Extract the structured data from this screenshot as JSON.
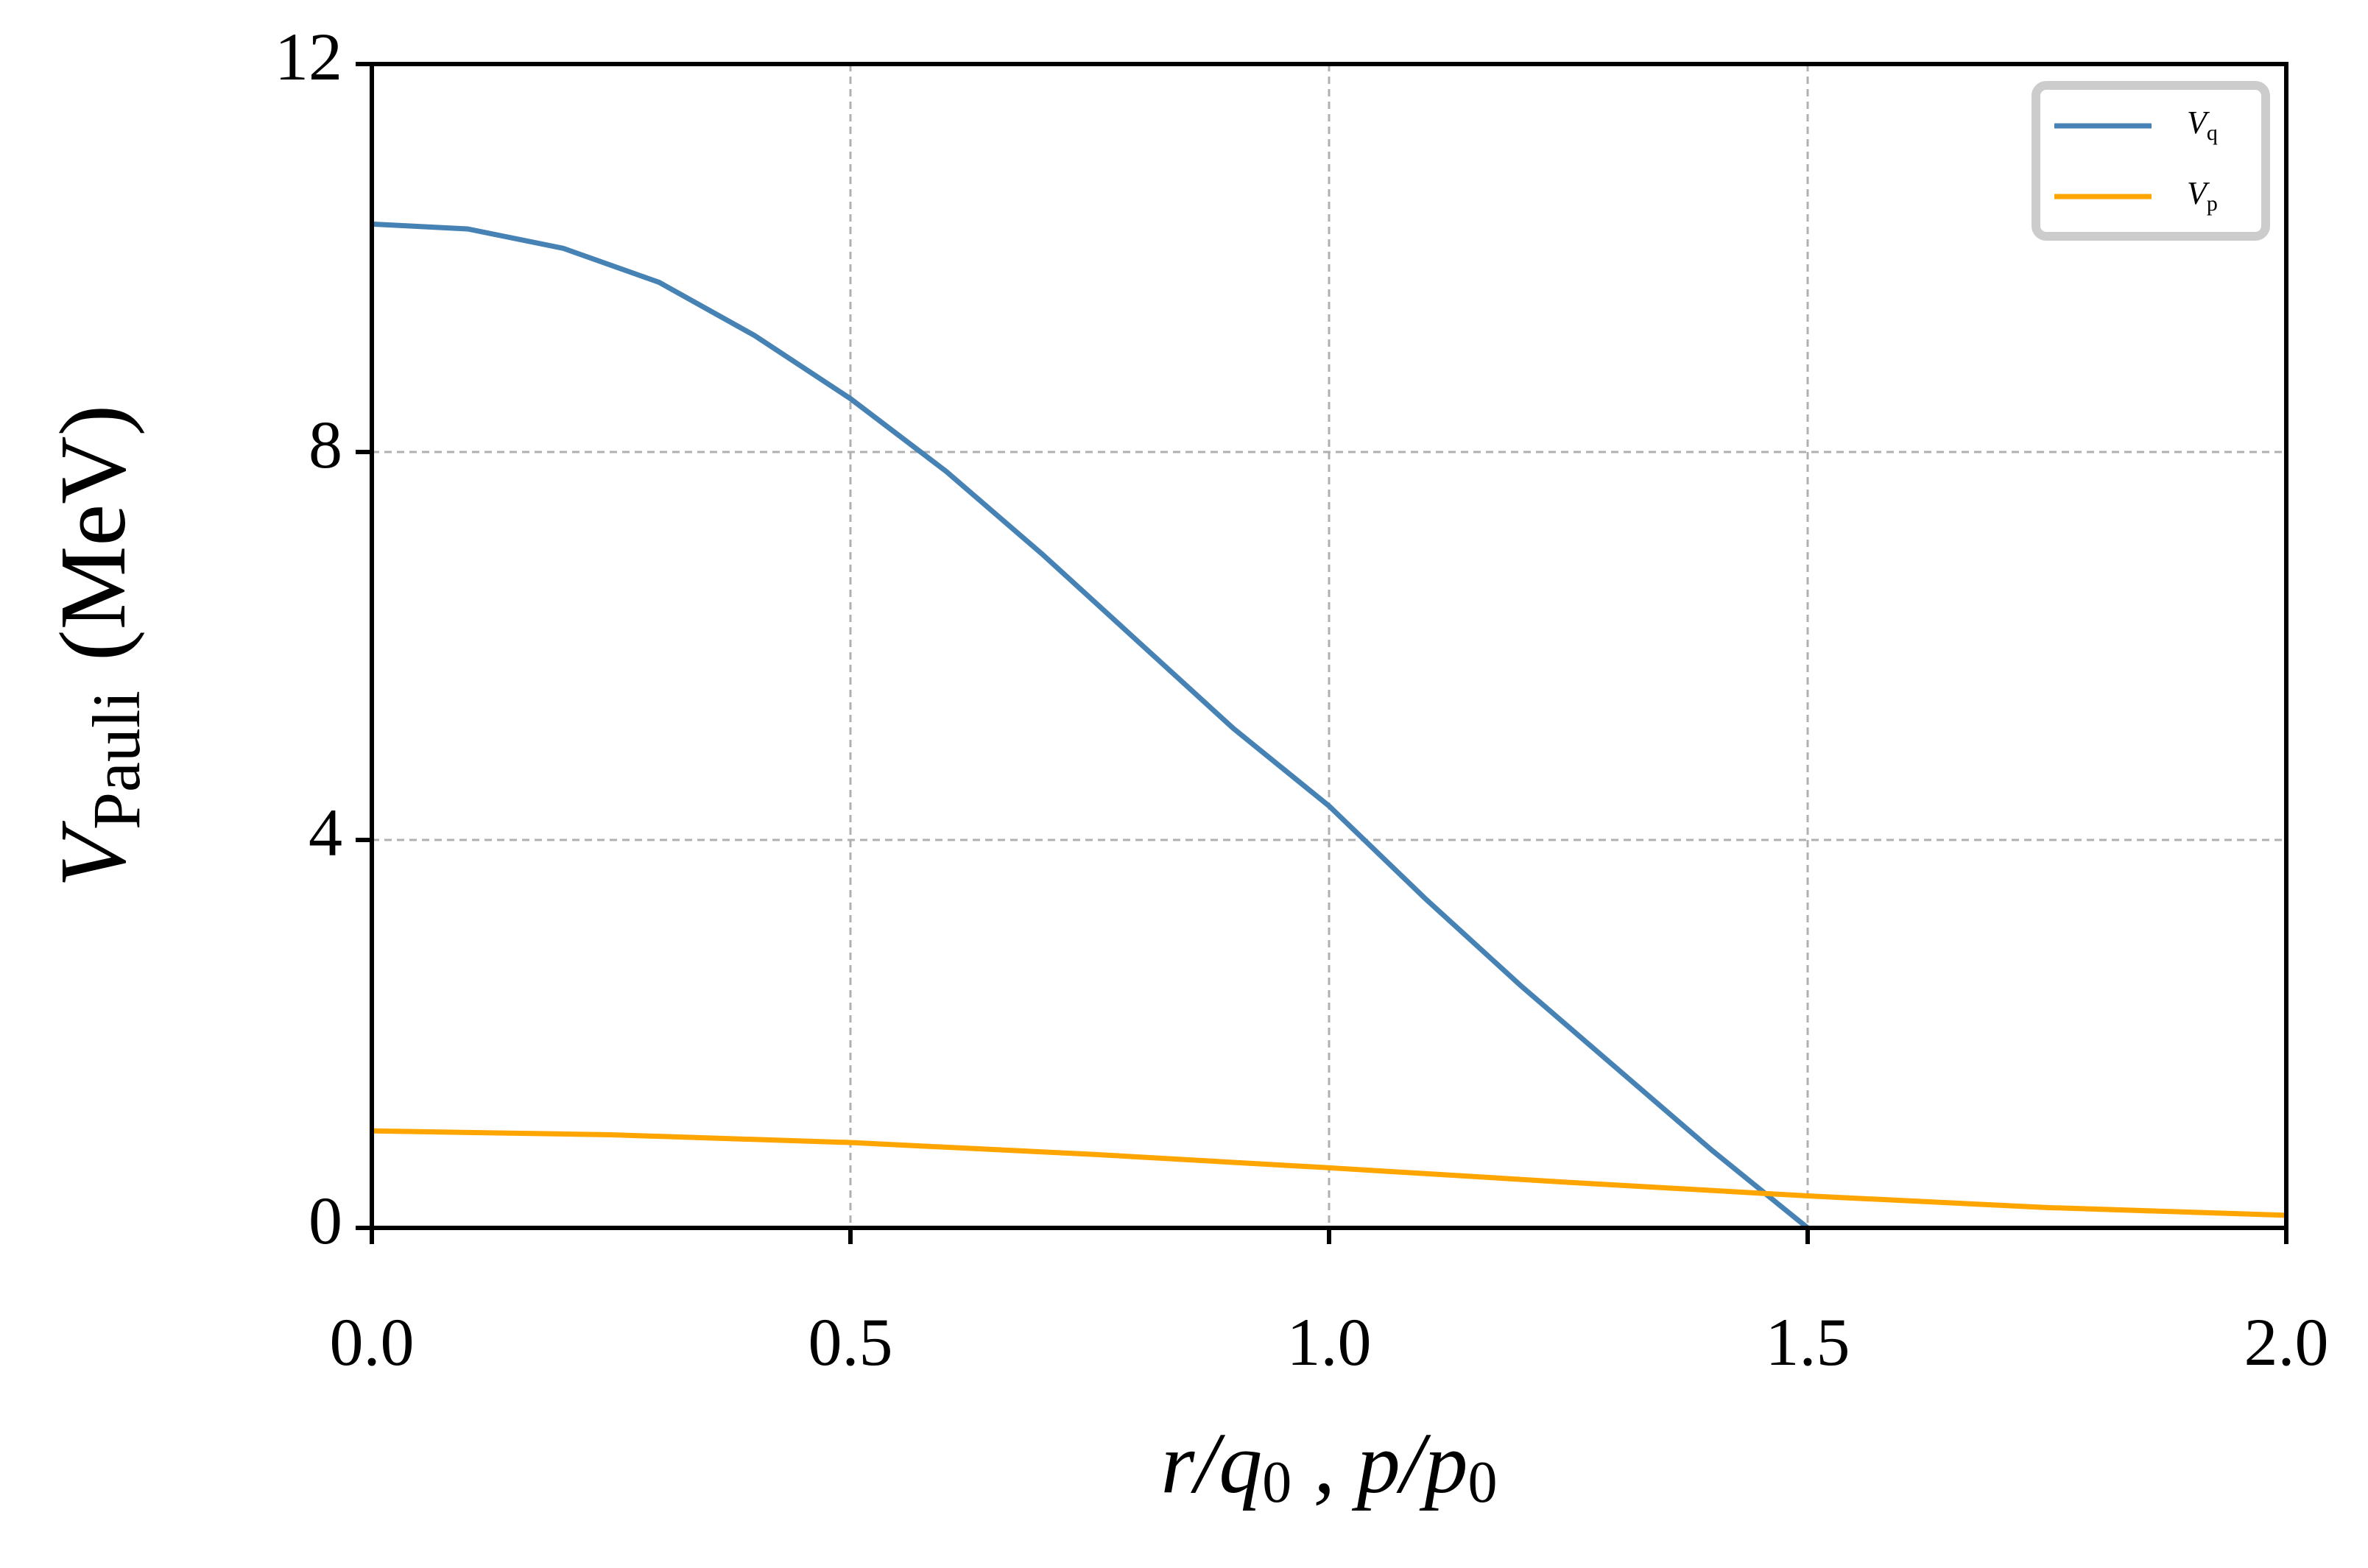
{
  "chart_data": {
    "type": "line",
    "x_label": {
      "parts": [
        "r/q",
        "0",
        " , p/p",
        "0"
      ]
    },
    "y_label": {
      "main": "V",
      "sub": "Pauli",
      "unit": "(MeV)"
    },
    "series": [
      {
        "name": "V",
        "name_sub": "q",
        "color": "#4682b4",
        "x": [
          0,
          0.1,
          0.2,
          0.3,
          0.4,
          0.5,
          0.6,
          0.7,
          0.8,
          0.9,
          1.0,
          1.1,
          1.2,
          1.3,
          1.4,
          1.5
        ],
        "values": [
          10.35,
          10.3,
          10.1,
          9.75,
          9.2,
          8.55,
          7.8,
          6.95,
          6.05,
          5.15,
          4.35,
          3.4,
          2.5,
          1.65,
          0.8,
          0
        ]
      },
      {
        "name": "V",
        "name_sub": "p",
        "color": "#ffa500",
        "x": [
          0,
          0.25,
          0.5,
          0.75,
          1.0,
          1.25,
          1.5,
          1.75,
          2.0
        ],
        "values": [
          1.0,
          0.96,
          0.88,
          0.76,
          0.62,
          0.47,
          0.33,
          0.21,
          0.13
        ]
      }
    ],
    "xlim": [
      0,
      2
    ],
    "xticks": [
      {
        "value": 0,
        "label": "0.0"
      },
      0.5,
      {
        "value": 1,
        "label": "1.0"
      },
      1.5,
      {
        "value": 2,
        "label": "2.0"
      }
    ],
    "ylim": [
      0,
      12
    ],
    "yticks": [
      0,
      4,
      8,
      12
    ],
    "grid": true,
    "legend": "upper right"
  }
}
